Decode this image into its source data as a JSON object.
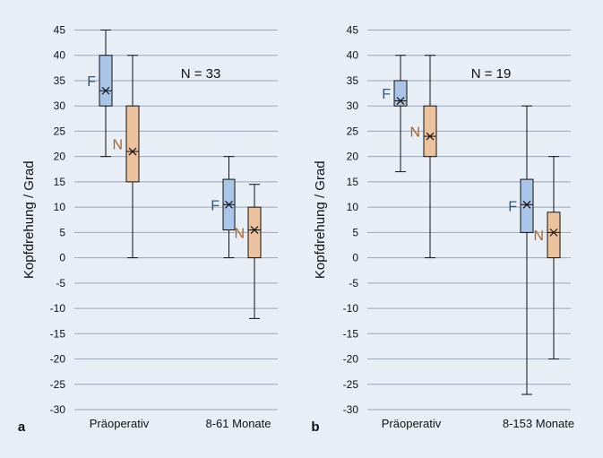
{
  "chart_data": [
    {
      "type": "boxplot",
      "panel_label": "a",
      "annotation": "N = 33",
      "ylabel": "Kopfdrehung / Grad",
      "xlabel": "",
      "ylim": [
        -30,
        45
      ],
      "yticks": [
        45,
        40,
        35,
        30,
        25,
        20,
        15,
        10,
        5,
        0,
        -5,
        -10,
        -15,
        -20,
        -25,
        -30
      ],
      "grid": true,
      "categories": [
        "Präoperativ",
        "8-61 Monate"
      ],
      "series": [
        {
          "name": "F",
          "color": "#a9c5e8",
          "label_color": "#2a5a7c",
          "boxes": [
            {
              "min": 20,
              "q1": 30,
              "median": 33,
              "mean": 33,
              "q3": 40,
              "max": 45
            },
            {
              "min": 0,
              "q1": 5.5,
              "median": 10.5,
              "mean": 10.5,
              "q3": 15.5,
              "max": 20
            }
          ]
        },
        {
          "name": "N",
          "color": "#ecc29c",
          "label_color": "#b5601b",
          "boxes": [
            {
              "min": 0,
              "q1": 15,
              "median": 21,
              "mean": 21,
              "q3": 30,
              "max": 40
            },
            {
              "min": -12,
              "q1": 0,
              "median": 5.5,
              "mean": 5.5,
              "q3": 10,
              "max": 14.5
            }
          ]
        }
      ]
    },
    {
      "type": "boxplot",
      "panel_label": "b",
      "annotation": "N = 19",
      "ylabel": "Kopfdrehung / Grad",
      "xlabel": "",
      "ylim": [
        -30,
        45
      ],
      "yticks": [
        45,
        40,
        35,
        30,
        25,
        20,
        15,
        10,
        5,
        0,
        -5,
        -10,
        -15,
        -20,
        -25,
        -30
      ],
      "grid": true,
      "categories": [
        "Präoperativ",
        "8-153 Monate"
      ],
      "series": [
        {
          "name": "F",
          "color": "#a9c5e8",
          "label_color": "#2a5a7c",
          "boxes": [
            {
              "min": 17,
              "q1": 30,
              "median": 31,
              "mean": 31,
              "q3": 35,
              "max": 40
            },
            {
              "min": -27,
              "q1": 5,
              "median": 10.5,
              "mean": 10.5,
              "q3": 15.5,
              "max": 30
            }
          ]
        },
        {
          "name": "N",
          "color": "#ecc29c",
          "label_color": "#b5601b",
          "boxes": [
            {
              "min": 0,
              "q1": 20,
              "median": 24,
              "mean": 24,
              "q3": 30,
              "max": 40
            },
            {
              "min": -20,
              "q1": 0,
              "median": 5,
              "mean": 5,
              "q3": 9,
              "max": 20
            }
          ]
        }
      ]
    }
  ]
}
